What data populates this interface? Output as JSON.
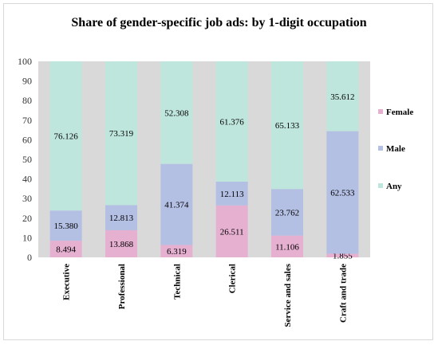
{
  "chart_data": {
    "type": "bar",
    "stacked": true,
    "title": "Share of gender-specific job ads: by 1-digit occupation",
    "categories": [
      "Executive",
      "Professional",
      "Technical",
      "Clerical",
      "Service and sales",
      "Craft and trade"
    ],
    "series": [
      {
        "name": "Female",
        "color": "#e6b0d1",
        "values": [
          8.494,
          13.868,
          6.319,
          26.511,
          11.106,
          1.855
        ]
      },
      {
        "name": "Male",
        "color": "#b4bfe4",
        "values": [
          15.38,
          12.813,
          41.374,
          12.113,
          23.762,
          62.533
        ]
      },
      {
        "name": "Any",
        "color": "#bfe6dc",
        "values": [
          76.126,
          73.319,
          52.308,
          61.376,
          65.133,
          35.612
        ]
      }
    ],
    "ylim": [
      0,
      100
    ],
    "yticks": [
      0,
      10,
      20,
      30,
      40,
      50,
      60,
      70,
      80,
      90,
      100
    ],
    "legend_position": "right",
    "plot_background": "#d9d9d9"
  }
}
